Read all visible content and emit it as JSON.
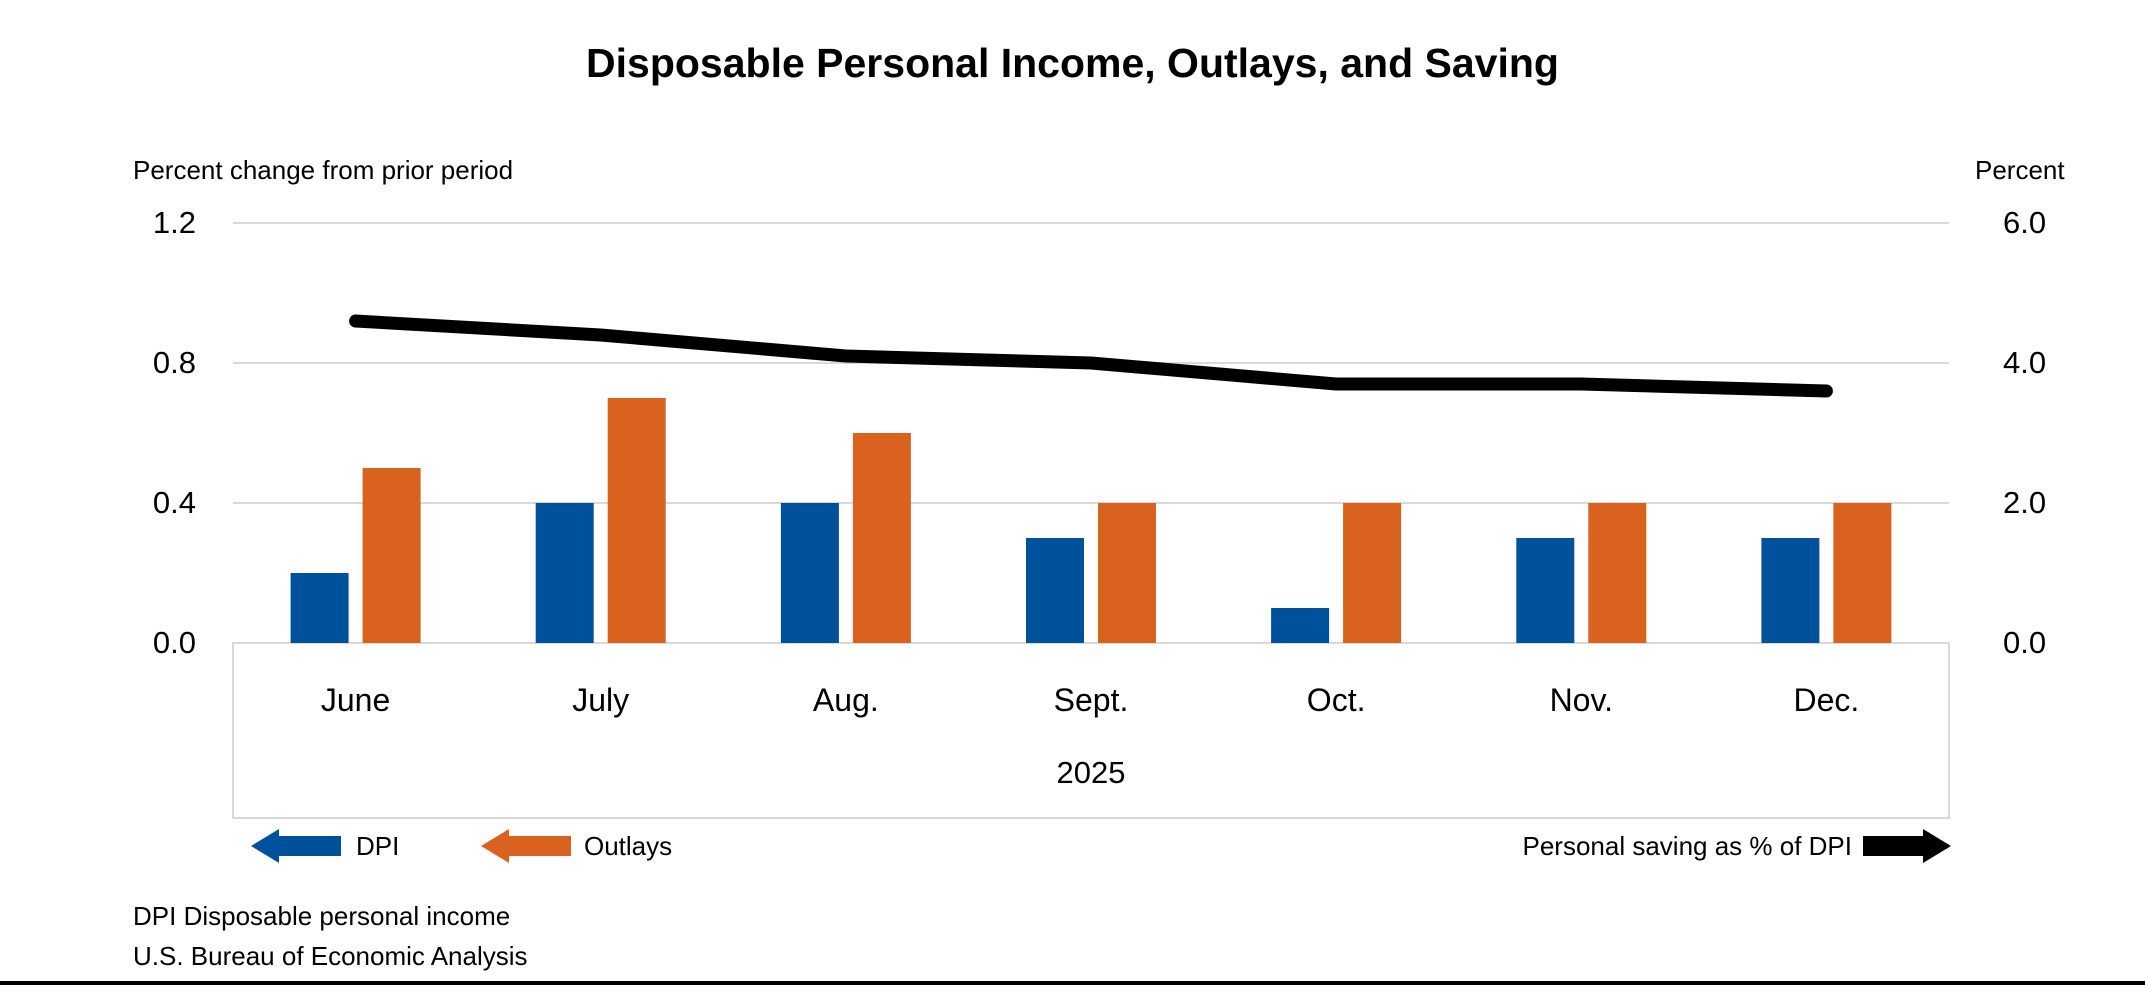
{
  "title": "Disposable Personal Income, Outlays, and Saving",
  "axes": {
    "left_header": "Percent change from prior period",
    "right_header": "Percent",
    "left_ticks": [
      "1.2",
      "0.8",
      "0.4",
      "0.0"
    ],
    "right_ticks": [
      "6.0",
      "4.0",
      "2.0",
      "0.0"
    ]
  },
  "legend": {
    "dpi_label": "DPI",
    "outlays_label": "Outlays",
    "saving_label": "Personal saving as % of DPI"
  },
  "footnotes": {
    "line1": "DPI Disposable personal income",
    "line2": "U.S. Bureau of Economic Analysis"
  },
  "colors": {
    "dpi": "#00519C",
    "outlays": "#D9621E",
    "saving": "#000000",
    "grid": "#D9D9D9",
    "text": "#000000"
  },
  "chart_data": {
    "type": "bar",
    "subtype": "grouped-bars-with-line",
    "title": "Disposable Personal Income, Outlays, and Saving",
    "categories": [
      "June",
      "July",
      "Aug.",
      "Sept.",
      "Oct.",
      "Nov.",
      "Dec."
    ],
    "year_label": "2025",
    "series": [
      {
        "name": "DPI",
        "type": "bar",
        "axis": "left",
        "color": "#00519C",
        "values": [
          0.2,
          0.4,
          0.4,
          0.3,
          0.1,
          0.3,
          0.3
        ]
      },
      {
        "name": "Outlays",
        "type": "bar",
        "axis": "left",
        "color": "#D9621E",
        "values": [
          0.5,
          0.7,
          0.6,
          0.4,
          0.4,
          0.4,
          0.4
        ]
      },
      {
        "name": "Personal saving as % of DPI",
        "type": "line",
        "axis": "right",
        "color": "#000000",
        "values": [
          4.6,
          4.4,
          4.1,
          4.0,
          3.7,
          3.7,
          3.6
        ]
      }
    ],
    "left_axis": {
      "label": "Percent change from prior period",
      "ticks": [
        0.0,
        0.4,
        0.8,
        1.2
      ],
      "range": [
        0.0,
        1.2
      ]
    },
    "right_axis": {
      "label": "Percent",
      "ticks": [
        0.0,
        2.0,
        4.0,
        6.0
      ],
      "range": [
        0.0,
        6.0
      ]
    },
    "grid": true,
    "legend_position": "bottom"
  }
}
